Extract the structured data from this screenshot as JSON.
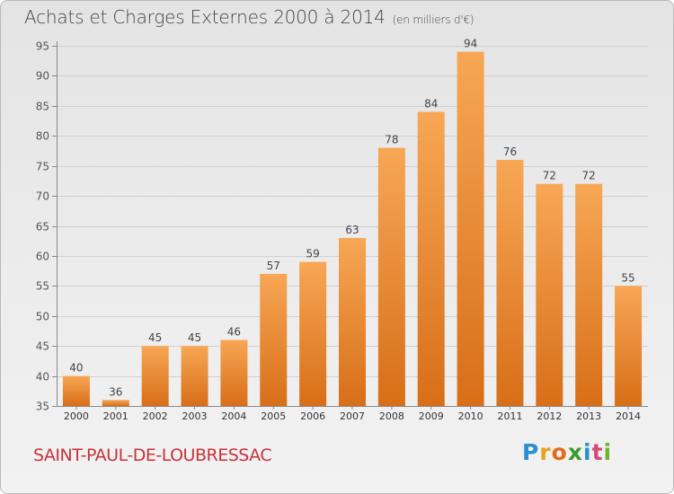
{
  "header": {
    "title": "Achats et Charges Externes 2000 à 2014",
    "unit": "(en milliers d'€)"
  },
  "footer": {
    "city": "SAINT-PAUL-DE-LOUBRESSAC",
    "brand": "Proxiti"
  },
  "colors": {
    "bar_top": "#f7a755",
    "bar_bottom": "#d86e18",
    "city": "#c8323c"
  },
  "chart_data": {
    "type": "bar",
    "categories": [
      "2000",
      "2001",
      "2002",
      "2003",
      "2004",
      "2005",
      "2006",
      "2007",
      "2008",
      "2009",
      "2010",
      "2011",
      "2012",
      "2013",
      "2014"
    ],
    "values": [
      40,
      36,
      45,
      45,
      46,
      57,
      59,
      63,
      78,
      84,
      94,
      76,
      72,
      72,
      55
    ],
    "yticks": [
      35,
      40,
      45,
      50,
      55,
      60,
      65,
      70,
      75,
      80,
      85,
      90,
      95
    ],
    "ylim": [
      35,
      95
    ],
    "grid": true,
    "title": "Achats et Charges Externes 2000 à 2014",
    "ylabel": "(en milliers d'€)"
  }
}
